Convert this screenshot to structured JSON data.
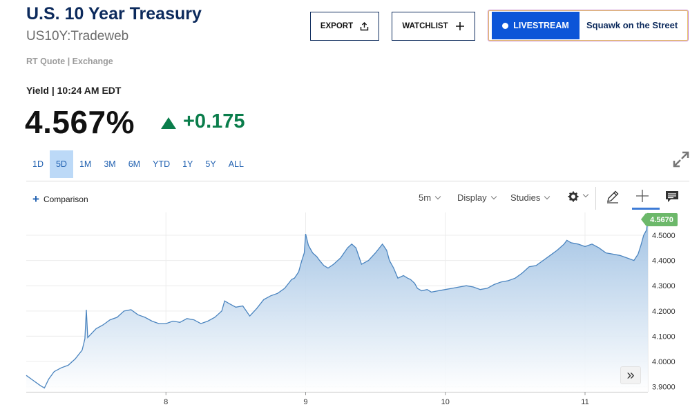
{
  "header": {
    "title": "U.S. 10 Year Treasury",
    "symbol": "US10Y:Tradeweb",
    "quote_source": "RT Quote | Exchange",
    "yield_time": "Yield | 10:24 AM EDT",
    "price": "4.567%",
    "change": "+0.175",
    "change_direction": "up"
  },
  "actions": {
    "export_label": "EXPORT",
    "watchlist_label": "WATCHLIST",
    "livestream_label": "LIVESTREAM",
    "show_name": "Squawk on the Street"
  },
  "range_tabs": {
    "items": [
      "1D",
      "5D",
      "1M",
      "3M",
      "6M",
      "YTD",
      "1Y",
      "5Y",
      "ALL"
    ],
    "active": "5D"
  },
  "chart_toolbar": {
    "comparison_label": "Comparison",
    "interval_label": "5m",
    "display_label": "Display",
    "studies_label": "Studies"
  },
  "icons": [
    "upload-icon",
    "plus-icon",
    "live-dot-icon",
    "expand-icon",
    "gear-icon",
    "pencil-icon",
    "crosshair-icon",
    "comment-icon",
    "double-chevron-right-icon"
  ],
  "colors": {
    "brand_navy": "#0c2a5c",
    "positive_green": "#0a7d4b",
    "link_blue": "#2060b0",
    "livestream_blue": "#0c55d8",
    "line_blue": "#4a84bf",
    "last_price_green": "#6cb86a"
  },
  "chart_data": {
    "type": "area",
    "x_tick_labels": [
      "8",
      "9",
      "10",
      "11"
    ],
    "y_tick_labels": [
      "3.9000",
      "4.0000",
      "4.1000",
      "4.2000",
      "4.3000",
      "4.4000",
      "4.5000"
    ],
    "ylim": [
      3.88,
      4.59
    ],
    "last_value_label": "4.5670",
    "grid": true,
    "x_domain_days": [
      7.0,
      11.45
    ],
    "series": [
      {
        "points": [
          [
            7.0,
            3.945
          ],
          [
            7.05,
            3.925
          ],
          [
            7.1,
            3.905
          ],
          [
            7.13,
            3.895
          ],
          [
            7.16,
            3.93
          ],
          [
            7.2,
            3.96
          ],
          [
            7.25,
            3.975
          ],
          [
            7.3,
            3.985
          ],
          [
            7.35,
            4.01
          ],
          [
            7.4,
            4.045
          ],
          [
            7.42,
            4.09
          ],
          [
            7.43,
            4.205
          ],
          [
            7.44,
            4.095
          ],
          [
            7.5,
            4.13
          ],
          [
            7.55,
            4.145
          ],
          [
            7.6,
            4.165
          ],
          [
            7.65,
            4.175
          ],
          [
            7.7,
            4.2
          ],
          [
            7.75,
            4.205
          ],
          [
            7.8,
            4.185
          ],
          [
            7.85,
            4.175
          ],
          [
            7.9,
            4.16
          ],
          [
            7.95,
            4.15
          ],
          [
            8.0,
            4.15
          ],
          [
            8.05,
            4.16
          ],
          [
            8.1,
            4.155
          ],
          [
            8.15,
            4.17
          ],
          [
            8.2,
            4.165
          ],
          [
            8.25,
            4.15
          ],
          [
            8.3,
            4.16
          ],
          [
            8.35,
            4.175
          ],
          [
            8.4,
            4.2
          ],
          [
            8.42,
            4.24
          ],
          [
            8.45,
            4.23
          ],
          [
            8.5,
            4.215
          ],
          [
            8.55,
            4.22
          ],
          [
            8.6,
            4.18
          ],
          [
            8.65,
            4.21
          ],
          [
            8.7,
            4.245
          ],
          [
            8.75,
            4.26
          ],
          [
            8.8,
            4.27
          ],
          [
            8.85,
            4.29
          ],
          [
            8.9,
            4.325
          ],
          [
            8.92,
            4.33
          ],
          [
            8.95,
            4.355
          ],
          [
            8.97,
            4.395
          ],
          [
            8.99,
            4.43
          ],
          [
            9.0,
            4.505
          ],
          [
            9.02,
            4.46
          ],
          [
            9.05,
            4.43
          ],
          [
            9.08,
            4.415
          ],
          [
            9.1,
            4.4
          ],
          [
            9.13,
            4.38
          ],
          [
            9.16,
            4.37
          ],
          [
            9.2,
            4.385
          ],
          [
            9.25,
            4.41
          ],
          [
            9.3,
            4.45
          ],
          [
            9.33,
            4.465
          ],
          [
            9.36,
            4.45
          ],
          [
            9.4,
            4.385
          ],
          [
            9.45,
            4.4
          ],
          [
            9.5,
            4.43
          ],
          [
            9.55,
            4.465
          ],
          [
            9.58,
            4.44
          ],
          [
            9.6,
            4.4
          ],
          [
            9.63,
            4.37
          ],
          [
            9.66,
            4.33
          ],
          [
            9.7,
            4.34
          ],
          [
            9.73,
            4.33
          ],
          [
            9.75,
            4.325
          ],
          [
            9.78,
            4.31
          ],
          [
            9.8,
            4.29
          ],
          [
            9.83,
            4.28
          ],
          [
            9.87,
            4.285
          ],
          [
            9.9,
            4.275
          ],
          [
            9.95,
            4.28
          ],
          [
            10.0,
            4.285
          ],
          [
            10.05,
            4.29
          ],
          [
            10.1,
            4.295
          ],
          [
            10.15,
            4.3
          ],
          [
            10.2,
            4.295
          ],
          [
            10.25,
            4.285
          ],
          [
            10.3,
            4.29
          ],
          [
            10.35,
            4.305
          ],
          [
            10.4,
            4.315
          ],
          [
            10.45,
            4.32
          ],
          [
            10.5,
            4.33
          ],
          [
            10.55,
            4.35
          ],
          [
            10.6,
            4.375
          ],
          [
            10.65,
            4.38
          ],
          [
            10.7,
            4.4
          ],
          [
            10.75,
            4.42
          ],
          [
            10.8,
            4.44
          ],
          [
            10.85,
            4.465
          ],
          [
            10.87,
            4.48
          ],
          [
            10.9,
            4.47
          ],
          [
            10.95,
            4.465
          ],
          [
            11.0,
            4.455
          ],
          [
            11.05,
            4.465
          ],
          [
            11.1,
            4.45
          ],
          [
            11.15,
            4.43
          ],
          [
            11.2,
            4.425
          ],
          [
            11.25,
            4.42
          ],
          [
            11.3,
            4.41
          ],
          [
            11.35,
            4.4
          ],
          [
            11.38,
            4.425
          ],
          [
            11.4,
            4.46
          ],
          [
            11.42,
            4.5
          ],
          [
            11.44,
            4.52
          ],
          [
            11.45,
            4.567
          ]
        ]
      }
    ]
  }
}
